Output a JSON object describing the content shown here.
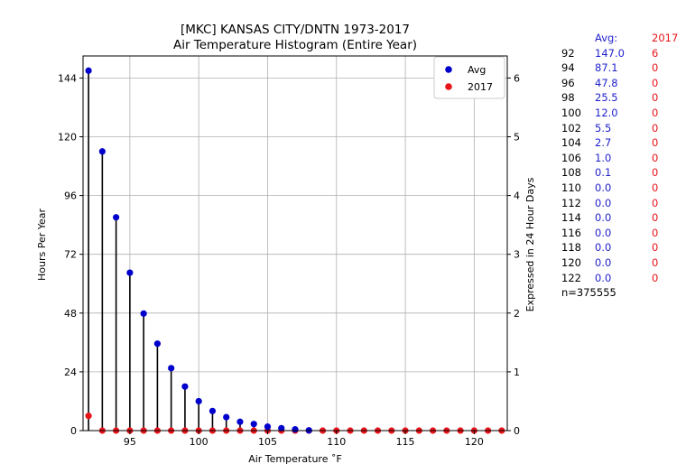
{
  "colors": {
    "avg": "#0000cc",
    "year": "#e8141a",
    "avg_text": "#1f1fcc",
    "stem": "#000000",
    "grid": "#b0b0b0"
  },
  "chart_data": {
    "type": "scatter",
    "title": "[MKC] KANSAS CITY/DNTN 1973-2017",
    "subtitle": "Air Temperature Histogram (Entire Year)",
    "xlabel": "Air Temperature ˚F",
    "ylabel": "Hours Per Year",
    "ylabel_right": "Expressed in 24 Hour Days",
    "xlim": [
      91.6,
      122.4
    ],
    "ylim": [
      0,
      153
    ],
    "ylim_right": [
      0,
      6.375
    ],
    "xticks": [
      95,
      100,
      105,
      110,
      115,
      120
    ],
    "yticks": [
      0,
      24,
      48,
      72,
      96,
      120,
      144
    ],
    "yticks_right": [
      0,
      1,
      2,
      3,
      4,
      5,
      6
    ],
    "grid": true,
    "legend_position": "top-right",
    "x": [
      92,
      93,
      94,
      95,
      96,
      97,
      98,
      99,
      100,
      101,
      102,
      103,
      104,
      105,
      106,
      107,
      108,
      109,
      110,
      111,
      112,
      113,
      114,
      115,
      116,
      117,
      118,
      119,
      120,
      121,
      122
    ],
    "series": [
      {
        "name": "Avg",
        "color": "#0000cc",
        "values": [
          147.0,
          114.0,
          87.1,
          64.5,
          47.8,
          35.5,
          25.5,
          18.0,
          12.0,
          8.0,
          5.5,
          3.6,
          2.7,
          1.6,
          1.0,
          0.5,
          0.1,
          0.0,
          0.0,
          0.0,
          0.0,
          0.0,
          0.0,
          0.0,
          0.0,
          0.0,
          0.0,
          0.0,
          0.0,
          0.0,
          0.0
        ]
      },
      {
        "name": "2017",
        "color": "#e8141a",
        "values": [
          6,
          0,
          0,
          0,
          0,
          0,
          0,
          0,
          0,
          0,
          0,
          0,
          0,
          0,
          0,
          0,
          0,
          0,
          0,
          0,
          0,
          0,
          0,
          0,
          0,
          0,
          0,
          0,
          0,
          0,
          0
        ]
      }
    ]
  },
  "table": {
    "header_avg": "Avg:",
    "header_year": "2017",
    "rows": [
      {
        "temp": "92",
        "avg": "147.0",
        "year": "6"
      },
      {
        "temp": "94",
        "avg": "87.1",
        "year": "0"
      },
      {
        "temp": "96",
        "avg": "47.8",
        "year": "0"
      },
      {
        "temp": "98",
        "avg": "25.5",
        "year": "0"
      },
      {
        "temp": "100",
        "avg": "12.0",
        "year": "0"
      },
      {
        "temp": "102",
        "avg": "5.5",
        "year": "0"
      },
      {
        "temp": "104",
        "avg": "2.7",
        "year": "0"
      },
      {
        "temp": "106",
        "avg": "1.0",
        "year": "0"
      },
      {
        "temp": "108",
        "avg": "0.1",
        "year": "0"
      },
      {
        "temp": "110",
        "avg": "0.0",
        "year": "0"
      },
      {
        "temp": "112",
        "avg": "0.0",
        "year": "0"
      },
      {
        "temp": "114",
        "avg": "0.0",
        "year": "0"
      },
      {
        "temp": "116",
        "avg": "0.0",
        "year": "0"
      },
      {
        "temp": "118",
        "avg": "0.0",
        "year": "0"
      },
      {
        "temp": "120",
        "avg": "0.0",
        "year": "0"
      },
      {
        "temp": "122",
        "avg": "0.0",
        "year": "0"
      }
    ],
    "count": "n=375555"
  }
}
